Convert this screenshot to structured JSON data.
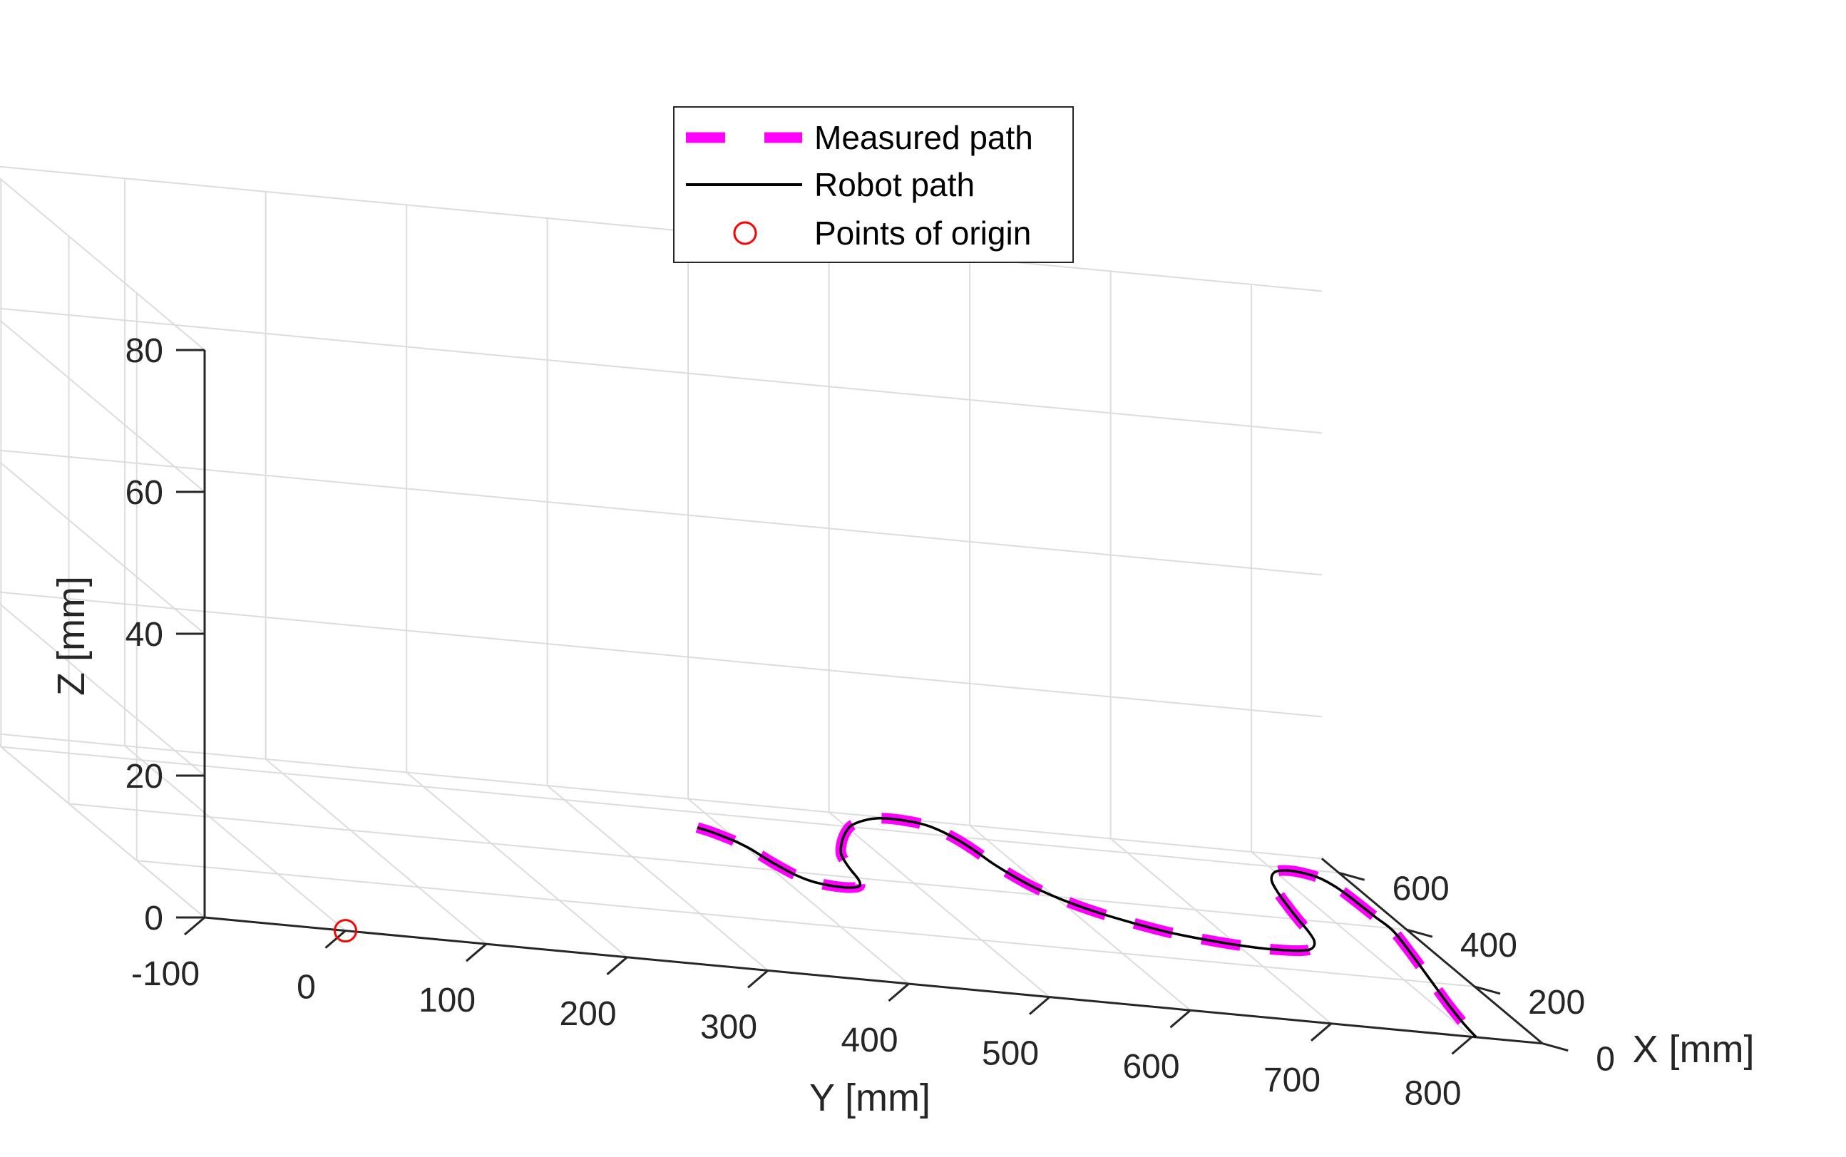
{
  "chart_data": {
    "type": "line3d",
    "title": "",
    "xlabel": "X [mm]",
    "ylabel": "Y [mm]",
    "zlabel": "Z [mm]",
    "xlim": [
      0,
      650
    ],
    "ylim": [
      -100,
      850
    ],
    "zlim": [
      0,
      80
    ],
    "x_ticks": [
      "0",
      "200",
      "400",
      "600"
    ],
    "y_ticks": [
      "-100",
      "0",
      "100",
      "200",
      "300",
      "400",
      "500",
      "600",
      "700",
      "800"
    ],
    "z_ticks": [
      "0",
      "20",
      "40",
      "60",
      "80"
    ],
    "grid": true,
    "legend_position": "top-center",
    "legend": [
      {
        "label": "Measured path",
        "style": "dashed",
        "color": "#ff00ff"
      },
      {
        "label": "Robot path",
        "style": "solid",
        "color": "#000000"
      },
      {
        "label": "Points of origin",
        "style": "circle-marker",
        "color": "#ff0000"
      }
    ],
    "origin_point": {
      "x": 0,
      "y": 0,
      "z": 0
    },
    "series": [
      {
        "name": "Robot path",
        "color": "#000000",
        "points": [
          [
            540,
            380,
            0
          ],
          [
            530,
            386,
            0
          ],
          [
            515,
            392,
            0
          ],
          [
            500,
            397,
            0
          ],
          [
            475,
            402,
            0
          ],
          [
            445,
            405,
            0
          ],
          [
            420,
            408,
            0
          ],
          [
            390,
            413,
            0
          ],
          [
            370,
            420,
            0
          ],
          [
            360,
            430,
            0
          ],
          [
            358,
            442,
            0
          ],
          [
            365,
            452,
            0
          ],
          [
            380,
            457,
            0
          ],
          [
            400,
            460,
            0
          ],
          [
            425,
            462,
            0
          ],
          [
            455,
            465,
            0
          ],
          [
            490,
            470,
            0
          ],
          [
            530,
            480,
            0
          ],
          [
            570,
            492,
            0
          ],
          [
            605,
            505,
            0
          ],
          [
            630,
            520,
            0
          ],
          [
            645,
            535,
            0
          ],
          [
            645,
            552,
            0
          ],
          [
            635,
            565,
            0
          ],
          [
            615,
            572,
            0
          ],
          [
            585,
            577,
            0
          ],
          [
            550,
            580,
            0
          ],
          [
            510,
            582,
            0
          ],
          [
            470,
            586,
            0
          ],
          [
            430,
            592,
            0
          ],
          [
            390,
            603,
            0
          ],
          [
            355,
            618,
            0
          ],
          [
            325,
            637,
            0
          ],
          [
            300,
            658,
            0
          ],
          [
            285,
            680,
            0
          ],
          [
            275,
            702,
            0
          ],
          [
            272,
            722,
            0
          ],
          [
            275,
            740,
            0
          ],
          [
            283,
            752,
            0
          ],
          [
            300,
            760,
            0
          ],
          [
            325,
            766,
            0
          ],
          [
            360,
            770,
            0
          ],
          [
            400,
            773,
            0
          ],
          [
            445,
            777,
            0
          ],
          [
            495,
            782,
            0
          ],
          [
            545,
            789,
            0
          ],
          [
            580,
            800,
            0
          ],
          [
            590,
            812,
            0
          ],
          [
            585,
            822,
            0
          ],
          [
            570,
            830,
            0
          ],
          [
            530,
            835,
            0
          ],
          [
            440,
            837,
            0
          ],
          [
            390,
            838,
            0
          ],
          [
            300,
            830,
            0
          ],
          [
            200,
            820,
            0
          ],
          [
            120,
            812,
            0
          ],
          [
            50,
            806,
            0
          ],
          [
            0,
            803,
            0
          ]
        ]
      },
      {
        "name": "Measured path",
        "color": "#ff00ff",
        "points": [
          [
            540,
            380,
            0
          ],
          [
            530,
            386,
            0
          ],
          [
            515,
            392,
            0
          ],
          [
            500,
            397,
            0
          ],
          [
            475,
            402,
            0
          ],
          [
            445,
            405,
            0
          ],
          [
            420,
            408,
            0
          ],
          [
            390,
            413,
            0
          ],
          [
            370,
            420,
            0
          ],
          [
            360,
            430,
            0
          ],
          [
            358,
            442,
            0
          ],
          [
            365,
            452,
            0
          ],
          [
            380,
            457,
            0
          ],
          [
            400,
            460,
            0
          ],
          [
            425,
            462,
            0
          ],
          [
            455,
            465,
            0
          ],
          [
            490,
            470,
            0
          ],
          [
            530,
            480,
            0
          ],
          [
            570,
            492,
            0
          ],
          [
            605,
            505,
            0
          ],
          [
            630,
            520,
            0
          ],
          [
            645,
            535,
            0
          ],
          [
            645,
            552,
            0
          ],
          [
            635,
            565,
            0
          ],
          [
            615,
            572,
            0
          ],
          [
            585,
            577,
            0
          ],
          [
            550,
            580,
            0
          ],
          [
            510,
            582,
            0
          ],
          [
            470,
            586,
            0
          ],
          [
            430,
            592,
            0
          ],
          [
            390,
            603,
            0
          ],
          [
            355,
            618,
            0
          ],
          [
            325,
            637,
            0
          ],
          [
            300,
            658,
            0
          ],
          [
            285,
            680,
            0
          ],
          [
            275,
            702,
            0
          ],
          [
            272,
            722,
            0
          ],
          [
            275,
            740,
            0
          ],
          [
            283,
            752,
            0
          ],
          [
            300,
            760,
            0
          ],
          [
            325,
            766,
            0
          ],
          [
            360,
            770,
            0
          ],
          [
            400,
            773,
            0
          ],
          [
            445,
            777,
            0
          ],
          [
            495,
            782,
            0
          ],
          [
            545,
            789,
            0
          ],
          [
            580,
            800,
            0
          ],
          [
            590,
            812,
            0
          ],
          [
            585,
            822,
            0
          ],
          [
            570,
            830,
            0
          ],
          [
            530,
            835,
            0
          ],
          [
            440,
            837,
            0
          ],
          [
            390,
            838,
            0
          ],
          [
            300,
            830,
            0
          ],
          [
            200,
            820,
            0
          ],
          [
            120,
            812,
            0
          ],
          [
            50,
            806,
            0
          ],
          [
            0,
            803,
            0
          ]
        ]
      }
    ]
  }
}
